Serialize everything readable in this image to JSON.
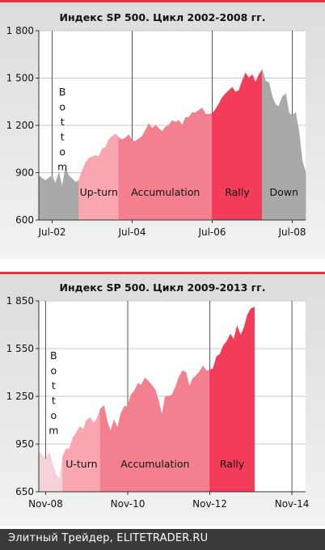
{
  "footer": {
    "text": "Элитный Трейдер, ELITETRADER.RU"
  },
  "colors": {
    "gray": "#a9a9a9",
    "light_pink": "#f9a6b0",
    "pink": "#f47f8f",
    "red": "#f33c5a",
    "accent_line": "#e8323c",
    "bottom_pale": "#f3d3d8"
  },
  "chart_data": [
    {
      "type": "area",
      "title": "Индекс SP 500. Цикл 2002-2008 гг.",
      "x_range": [
        "2002-03",
        "2008-11"
      ],
      "ylim": [
        600,
        1800
      ],
      "yticks": [
        600,
        900,
        1200,
        1500,
        1800
      ],
      "ytick_labels": [
        "600",
        "900",
        "1 200",
        "1 500",
        "1 800"
      ],
      "xticks": [
        "2002-07",
        "2004-07",
        "2006-07",
        "2008-07"
      ],
      "xtick_labels": [
        "Jul-02",
        "Jul-04",
        "Jul-06",
        "Jul-08"
      ],
      "grid": true,
      "series": [
        {
          "date": "2002-03",
          "value": 880
        },
        {
          "date": "2002-05",
          "value": 850
        },
        {
          "date": "2002-07",
          "value": 880
        },
        {
          "date": "2002-08",
          "value": 830
        },
        {
          "date": "2002-09",
          "value": 900
        },
        {
          "date": "2002-10",
          "value": 810
        },
        {
          "date": "2002-11",
          "value": 930
        },
        {
          "date": "2002-12",
          "value": 880
        },
        {
          "date": "2003-01",
          "value": 860
        },
        {
          "date": "2003-02",
          "value": 840
        },
        {
          "date": "2003-03",
          "value": 850
        },
        {
          "date": "2003-04",
          "value": 910
        },
        {
          "date": "2003-05",
          "value": 960
        },
        {
          "date": "2003-06",
          "value": 990
        },
        {
          "date": "2003-07",
          "value": 1000
        },
        {
          "date": "2003-08",
          "value": 1010
        },
        {
          "date": "2003-09",
          "value": 1000
        },
        {
          "date": "2003-10",
          "value": 1050
        },
        {
          "date": "2003-11",
          "value": 1060
        },
        {
          "date": "2003-12",
          "value": 1110
        },
        {
          "date": "2004-01",
          "value": 1130
        },
        {
          "date": "2004-02",
          "value": 1145
        },
        {
          "date": "2004-03",
          "value": 1120
        },
        {
          "date": "2004-04",
          "value": 1110
        },
        {
          "date": "2004-05",
          "value": 1120
        },
        {
          "date": "2004-06",
          "value": 1140
        },
        {
          "date": "2004-07",
          "value": 1100
        },
        {
          "date": "2004-08",
          "value": 1100
        },
        {
          "date": "2004-09",
          "value": 1115
        },
        {
          "date": "2004-10",
          "value": 1130
        },
        {
          "date": "2004-11",
          "value": 1170
        },
        {
          "date": "2004-12",
          "value": 1210
        },
        {
          "date": "2005-01",
          "value": 1180
        },
        {
          "date": "2005-02",
          "value": 1200
        },
        {
          "date": "2005-03",
          "value": 1180
        },
        {
          "date": "2005-04",
          "value": 1160
        },
        {
          "date": "2005-05",
          "value": 1190
        },
        {
          "date": "2005-06",
          "value": 1200
        },
        {
          "date": "2005-07",
          "value": 1230
        },
        {
          "date": "2005-08",
          "value": 1220
        },
        {
          "date": "2005-09",
          "value": 1230
        },
        {
          "date": "2005-10",
          "value": 1200
        },
        {
          "date": "2005-11",
          "value": 1250
        },
        {
          "date": "2005-12",
          "value": 1250
        },
        {
          "date": "2006-01",
          "value": 1280
        },
        {
          "date": "2006-02",
          "value": 1280
        },
        {
          "date": "2006-03",
          "value": 1295
        },
        {
          "date": "2006-04",
          "value": 1310
        },
        {
          "date": "2006-05",
          "value": 1270
        },
        {
          "date": "2006-06",
          "value": 1270
        },
        {
          "date": "2006-07",
          "value": 1275
        },
        {
          "date": "2006-08",
          "value": 1300
        },
        {
          "date": "2006-09",
          "value": 1335
        },
        {
          "date": "2006-10",
          "value": 1375
        },
        {
          "date": "2006-11",
          "value": 1400
        },
        {
          "date": "2006-12",
          "value": 1420
        },
        {
          "date": "2007-01",
          "value": 1440
        },
        {
          "date": "2007-02",
          "value": 1410
        },
        {
          "date": "2007-03",
          "value": 1420
        },
        {
          "date": "2007-04",
          "value": 1480
        },
        {
          "date": "2007-05",
          "value": 1530
        },
        {
          "date": "2007-06",
          "value": 1500
        },
        {
          "date": "2007-07",
          "value": 1520
        },
        {
          "date": "2007-08",
          "value": 1470
        },
        {
          "date": "2007-09",
          "value": 1520
        },
        {
          "date": "2007-10",
          "value": 1550
        },
        {
          "date": "2007-11",
          "value": 1480
        },
        {
          "date": "2007-12",
          "value": 1470
        },
        {
          "date": "2008-01",
          "value": 1380
        },
        {
          "date": "2008-02",
          "value": 1330
        },
        {
          "date": "2008-03",
          "value": 1320
        },
        {
          "date": "2008-04",
          "value": 1380
        },
        {
          "date": "2008-05",
          "value": 1400
        },
        {
          "date": "2008-06",
          "value": 1280
        },
        {
          "date": "2008-07",
          "value": 1260
        },
        {
          "date": "2008-08",
          "value": 1280
        },
        {
          "date": "2008-09",
          "value": 1160
        },
        {
          "date": "2008-10",
          "value": 970
        },
        {
          "date": "2008-11",
          "value": 900
        }
      ],
      "phases": [
        {
          "label": "Bottom",
          "start": "2002-03",
          "end": "2003-03",
          "color": "#a9a9a9",
          "vertical": true
        },
        {
          "label": "Up-turn",
          "start": "2003-03",
          "end": "2004-03",
          "color": "#f9a6b0"
        },
        {
          "label": "Accumulation",
          "start": "2004-03",
          "end": "2006-07",
          "color": "#f47f8f"
        },
        {
          "label": "Rally",
          "start": "2006-07",
          "end": "2007-10",
          "color": "#f33c5a"
        },
        {
          "label": "Down",
          "start": "2007-10",
          "end": "2008-11",
          "color": "#a9a9a9"
        }
      ]
    },
    {
      "type": "area",
      "title": "Индекс SP 500. Цикл 2009-2013 гг.",
      "x_range": [
        "2008-09",
        "2015-03"
      ],
      "ylim": [
        650,
        1850
      ],
      "yticks": [
        650,
        950,
        1250,
        1550,
        1850
      ],
      "ytick_labels": [
        "650",
        "950",
        "1 250",
        "1 550",
        "1 850"
      ],
      "xticks": [
        "2008-11",
        "2010-11",
        "2012-11",
        "2014-11"
      ],
      "xtick_labels": [
        "Nov-08",
        "Nov-10",
        "Nov-12",
        "Nov-14"
      ],
      "grid": true,
      "series": [
        {
          "date": "2008-09",
          "value": 900
        },
        {
          "date": "2008-10",
          "value": 880
        },
        {
          "date": "2008-11",
          "value": 850
        },
        {
          "date": "2008-12",
          "value": 900
        },
        {
          "date": "2009-01",
          "value": 830
        },
        {
          "date": "2009-02",
          "value": 760
        },
        {
          "date": "2009-03",
          "value": 730
        },
        {
          "date": "2009-04",
          "value": 870
        },
        {
          "date": "2009-05",
          "value": 920
        },
        {
          "date": "2009-06",
          "value": 920
        },
        {
          "date": "2009-07",
          "value": 990
        },
        {
          "date": "2009-08",
          "value": 1020
        },
        {
          "date": "2009-09",
          "value": 1060
        },
        {
          "date": "2009-10",
          "value": 1040
        },
        {
          "date": "2009-11",
          "value": 1100
        },
        {
          "date": "2009-12",
          "value": 1115
        },
        {
          "date": "2010-01",
          "value": 1080
        },
        {
          "date": "2010-02",
          "value": 1110
        },
        {
          "date": "2010-03",
          "value": 1170
        },
        {
          "date": "2010-04",
          "value": 1190
        },
        {
          "date": "2010-05",
          "value": 1090
        },
        {
          "date": "2010-06",
          "value": 1030
        },
        {
          "date": "2010-07",
          "value": 1100
        },
        {
          "date": "2010-08",
          "value": 1050
        },
        {
          "date": "2010-09",
          "value": 1140
        },
        {
          "date": "2010-10",
          "value": 1185
        },
        {
          "date": "2010-11",
          "value": 1190
        },
        {
          "date": "2010-12",
          "value": 1260
        },
        {
          "date": "2011-01",
          "value": 1285
        },
        {
          "date": "2011-02",
          "value": 1330
        },
        {
          "date": "2011-03",
          "value": 1320
        },
        {
          "date": "2011-04",
          "value": 1365
        },
        {
          "date": "2011-05",
          "value": 1345
        },
        {
          "date": "2011-06",
          "value": 1320
        },
        {
          "date": "2011-07",
          "value": 1290
        },
        {
          "date": "2011-08",
          "value": 1220
        },
        {
          "date": "2011-09",
          "value": 1130
        },
        {
          "date": "2011-10",
          "value": 1250
        },
        {
          "date": "2011-11",
          "value": 1250
        },
        {
          "date": "2011-12",
          "value": 1260
        },
        {
          "date": "2012-01",
          "value": 1310
        },
        {
          "date": "2012-02",
          "value": 1370
        },
        {
          "date": "2012-03",
          "value": 1410
        },
        {
          "date": "2012-04",
          "value": 1400
        },
        {
          "date": "2012-05",
          "value": 1310
        },
        {
          "date": "2012-06",
          "value": 1360
        },
        {
          "date": "2012-07",
          "value": 1380
        },
        {
          "date": "2012-08",
          "value": 1405
        },
        {
          "date": "2012-09",
          "value": 1440
        },
        {
          "date": "2012-10",
          "value": 1410
        },
        {
          "date": "2012-11",
          "value": 1415
        },
        {
          "date": "2012-12",
          "value": 1425
        },
        {
          "date": "2013-01",
          "value": 1500
        },
        {
          "date": "2013-02",
          "value": 1515
        },
        {
          "date": "2013-03",
          "value": 1570
        },
        {
          "date": "2013-04",
          "value": 1595
        },
        {
          "date": "2013-05",
          "value": 1640
        },
        {
          "date": "2013-06",
          "value": 1605
        },
        {
          "date": "2013-07",
          "value": 1690
        },
        {
          "date": "2013-08",
          "value": 1630
        },
        {
          "date": "2013-09",
          "value": 1680
        },
        {
          "date": "2013-10",
          "value": 1760
        },
        {
          "date": "2013-11",
          "value": 1800
        },
        {
          "date": "2013-12",
          "value": 1810
        }
      ],
      "phases": [
        {
          "label": "Bottom",
          "start": "2008-09",
          "end": "2009-04",
          "color": "#f3d3d8",
          "vertical": true
        },
        {
          "label": "U-turn",
          "start": "2009-04",
          "end": "2010-03",
          "color": "#f9a6b0"
        },
        {
          "label": "Accumulation",
          "start": "2010-03",
          "end": "2012-11",
          "color": "#f47f8f"
        },
        {
          "label": "Rally",
          "start": "2012-11",
          "end": "2013-12",
          "color": "#f33c5a"
        }
      ]
    }
  ]
}
